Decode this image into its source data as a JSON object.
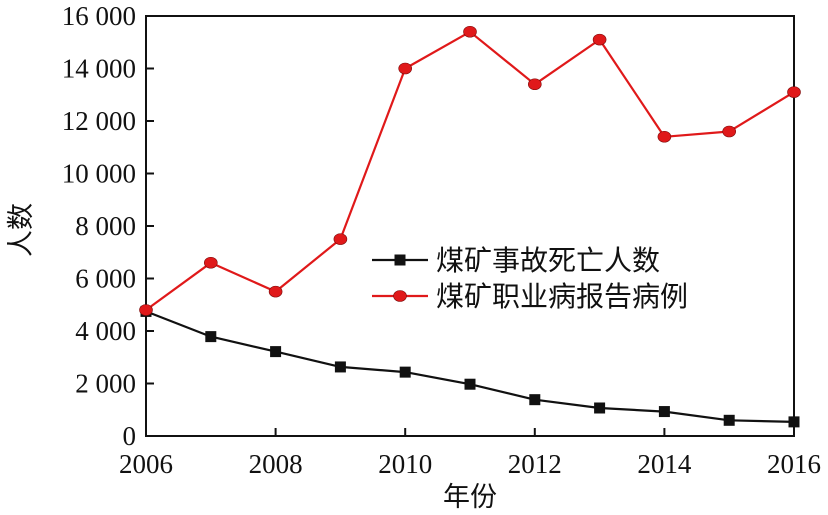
{
  "chart_data": {
    "type": "line",
    "title": "",
    "xlabel": "年份",
    "ylabel": "人数",
    "x": [
      2006,
      2007,
      2008,
      2009,
      2010,
      2011,
      2012,
      2013,
      2014,
      2015,
      2016
    ],
    "xlim": [
      2006,
      2016
    ],
    "ylim": [
      0,
      16000
    ],
    "x_ticks": [
      "2006",
      "2008",
      "2010",
      "2012",
      "2014",
      "2016"
    ],
    "y_ticks": [
      "0",
      "2 000",
      "4 000",
      "6 000",
      "8 000",
      "10 000",
      "12 000",
      "14 000",
      "16 000"
    ],
    "grid": false,
    "legend_position": "center-right",
    "series": [
      {
        "name": "煤矿事故死亡人数",
        "color": "#111111",
        "marker": "square",
        "values": [
          4746,
          3786,
          3215,
          2631,
          2433,
          1973,
          1384,
          1067,
          931,
          598,
          538
        ]
      },
      {
        "name": "煤矿职业病报告病例",
        "color": "#e0191a",
        "marker": "circle",
        "values": [
          4800,
          6600,
          5500,
          7500,
          14000,
          15400,
          13400,
          15100,
          11400,
          11600,
          13100
        ]
      }
    ]
  }
}
